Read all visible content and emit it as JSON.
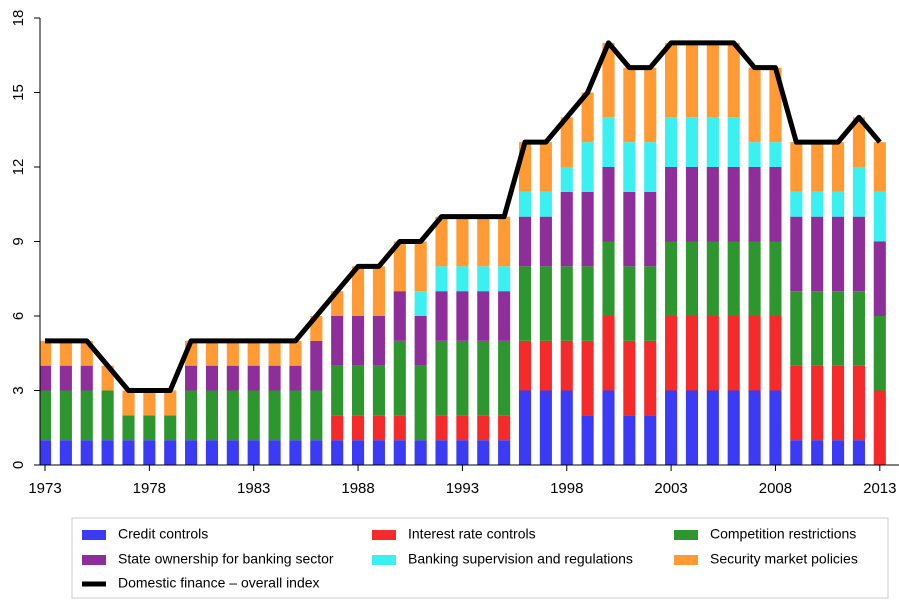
{
  "chart_data": {
    "type": "bar",
    "stacked": true,
    "x": [
      1973,
      1974,
      1975,
      1976,
      1977,
      1978,
      1979,
      1980,
      1981,
      1982,
      1983,
      1984,
      1985,
      1986,
      1987,
      1988,
      1989,
      1990,
      1991,
      1992,
      1993,
      1994,
      1995,
      1996,
      1997,
      1998,
      1999,
      2000,
      2001,
      2002,
      2003,
      2004,
      2005,
      2006,
      2007,
      2008,
      2009,
      2010,
      2011,
      2012,
      2013
    ],
    "series": [
      {
        "name": "Credit controls",
        "color": "#3b3bf5",
        "values": [
          1,
          1,
          1,
          1,
          1,
          1,
          1,
          1,
          1,
          1,
          1,
          1,
          1,
          1,
          1,
          1,
          1,
          1,
          1,
          1,
          1,
          1,
          1,
          3,
          3,
          3,
          2,
          3,
          2,
          2,
          3,
          3,
          3,
          3,
          3,
          3,
          1,
          1,
          1,
          1,
          0
        ]
      },
      {
        "name": "Interest rate controls",
        "color": "#f52a2a",
        "values": [
          0,
          0,
          0,
          0,
          0,
          0,
          0,
          0,
          0,
          0,
          0,
          0,
          0,
          0,
          1,
          1,
          1,
          1,
          0,
          1,
          1,
          1,
          1,
          2,
          2,
          2,
          3,
          3,
          3,
          3,
          3,
          3,
          3,
          3,
          3,
          3,
          3,
          3,
          3,
          3,
          3
        ]
      },
      {
        "name": "Competition restrictions",
        "color": "#2e962e",
        "values": [
          2,
          2,
          2,
          2,
          1,
          1,
          1,
          2,
          2,
          2,
          2,
          2,
          2,
          2,
          2,
          2,
          2,
          3,
          3,
          3,
          3,
          3,
          3,
          3,
          3,
          3,
          3,
          3,
          3,
          3,
          3,
          3,
          3,
          3,
          3,
          3,
          3,
          3,
          3,
          3,
          3
        ]
      },
      {
        "name": "State ownership for banking sector",
        "color": "#8e2e9a",
        "values": [
          1,
          1,
          1,
          0,
          0,
          0,
          0,
          1,
          1,
          1,
          1,
          1,
          1,
          2,
          2,
          2,
          2,
          2,
          2,
          2,
          2,
          2,
          2,
          2,
          2,
          3,
          3,
          3,
          3,
          3,
          3,
          3,
          3,
          3,
          3,
          3,
          3,
          3,
          3,
          3,
          3
        ]
      },
      {
        "name": "Banking supervision and regulations",
        "color": "#3af0f0",
        "values": [
          0,
          0,
          0,
          0,
          0,
          0,
          0,
          0,
          0,
          0,
          0,
          0,
          0,
          0,
          0,
          0,
          0,
          0,
          1,
          1,
          1,
          1,
          1,
          1,
          1,
          1,
          2,
          2,
          2,
          2,
          2,
          2,
          2,
          2,
          1,
          1,
          1,
          1,
          1,
          2,
          2
        ]
      },
      {
        "name": "Security market policies",
        "color": "#ff9a35",
        "values": [
          1,
          1,
          1,
          1,
          1,
          1,
          1,
          1,
          1,
          1,
          1,
          1,
          1,
          1,
          1,
          2,
          2,
          2,
          2,
          2,
          2,
          2,
          2,
          2,
          2,
          2,
          2,
          3,
          3,
          3,
          3,
          3,
          3,
          3,
          3,
          3,
          2,
          2,
          2,
          2,
          2
        ]
      }
    ],
    "line_series": {
      "name": "Domestic finance – overall index",
      "color": "#000000",
      "values": [
        5,
        5,
        5,
        4,
        3,
        3,
        3,
        5,
        5,
        5,
        5,
        5,
        5,
        6,
        7,
        8,
        8,
        9,
        9,
        10,
        10,
        10,
        10,
        13,
        13,
        14,
        15,
        17,
        16,
        16,
        17,
        17,
        17,
        17,
        16,
        16,
        13,
        13,
        13,
        14,
        13
      ]
    },
    "xlim": [
      1972.76,
      2013.92
    ],
    "xticks": [
      1973,
      1978,
      1983,
      1988,
      1993,
      1998,
      2003,
      2008,
      2013
    ],
    "ylim": [
      0,
      18
    ],
    "yticks": [
      0,
      3,
      6,
      9,
      12,
      15,
      18
    ]
  }
}
